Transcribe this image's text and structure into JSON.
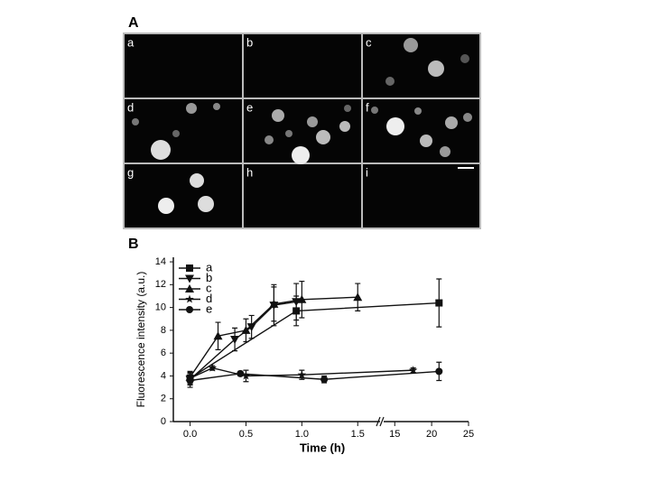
{
  "panel_a": {
    "label": "A",
    "panels": [
      "a",
      "b",
      "c",
      "d",
      "e",
      "f",
      "g",
      "h",
      "i"
    ]
  },
  "chart_data": {
    "type": "line",
    "label": "B",
    "xlabel": "Time (h)",
    "ylabel": "Fluorescence intensity (a.u.)",
    "xlim": [
      [
        -0.15,
        1.7
      ],
      [
        13.5,
        25
      ]
    ],
    "xticks": [
      {
        "value": 0,
        "label": "0.0"
      },
      {
        "value": 0.5,
        "label": "0.5"
      },
      {
        "value": 1,
        "label": "1.0"
      },
      {
        "value": 1.5,
        "label": "1.5"
      },
      15,
      20,
      25
    ],
    "ylim": [
      0,
      14.4
    ],
    "yticks": [
      0,
      2,
      4,
      6,
      8,
      10,
      12,
      14
    ],
    "legend": "top-left",
    "series": [
      {
        "name": "a",
        "marker": "square",
        "color": "#111",
        "x": [
          0,
          0.95,
          21
        ],
        "values": [
          3.8,
          9.7,
          10.4
        ],
        "errors": [
          0.5,
          1.3,
          2.1
        ]
      },
      {
        "name": "b",
        "marker": "triangle-down",
        "color": "#111",
        "x": [
          0,
          0.4,
          0.55,
          0.75,
          0.95
        ],
        "values": [
          3.7,
          7.2,
          8.3,
          10.2,
          10.5
        ],
        "errors": [
          0.5,
          1.0,
          1.0,
          1.8,
          1.6
        ]
      },
      {
        "name": "c",
        "marker": "triangle-up",
        "color": "#111",
        "x": [
          0,
          0.25,
          0.5,
          0.75,
          1.0,
          1.5
        ],
        "values": [
          3.9,
          7.5,
          8.0,
          10.3,
          10.7,
          10.9
        ],
        "errors": [
          0.5,
          1.2,
          1.0,
          1.5,
          1.6,
          1.2
        ]
      },
      {
        "name": "d",
        "marker": "star",
        "color": "#111",
        "x": [
          0,
          0.2,
          0.5,
          1.0,
          17.5
        ],
        "values": [
          3.8,
          4.7,
          4.0,
          4.1,
          4.5
        ],
        "errors": [
          0.4,
          0.2,
          0.5,
          0.4,
          0.2
        ]
      },
      {
        "name": "e",
        "marker": "circle",
        "color": "#111",
        "x": [
          0,
          0.45,
          1.2,
          21
        ],
        "values": [
          3.6,
          4.2,
          3.7,
          4.4
        ],
        "errors": [
          0.6,
          0.2,
          0.3,
          0.8
        ]
      }
    ]
  }
}
